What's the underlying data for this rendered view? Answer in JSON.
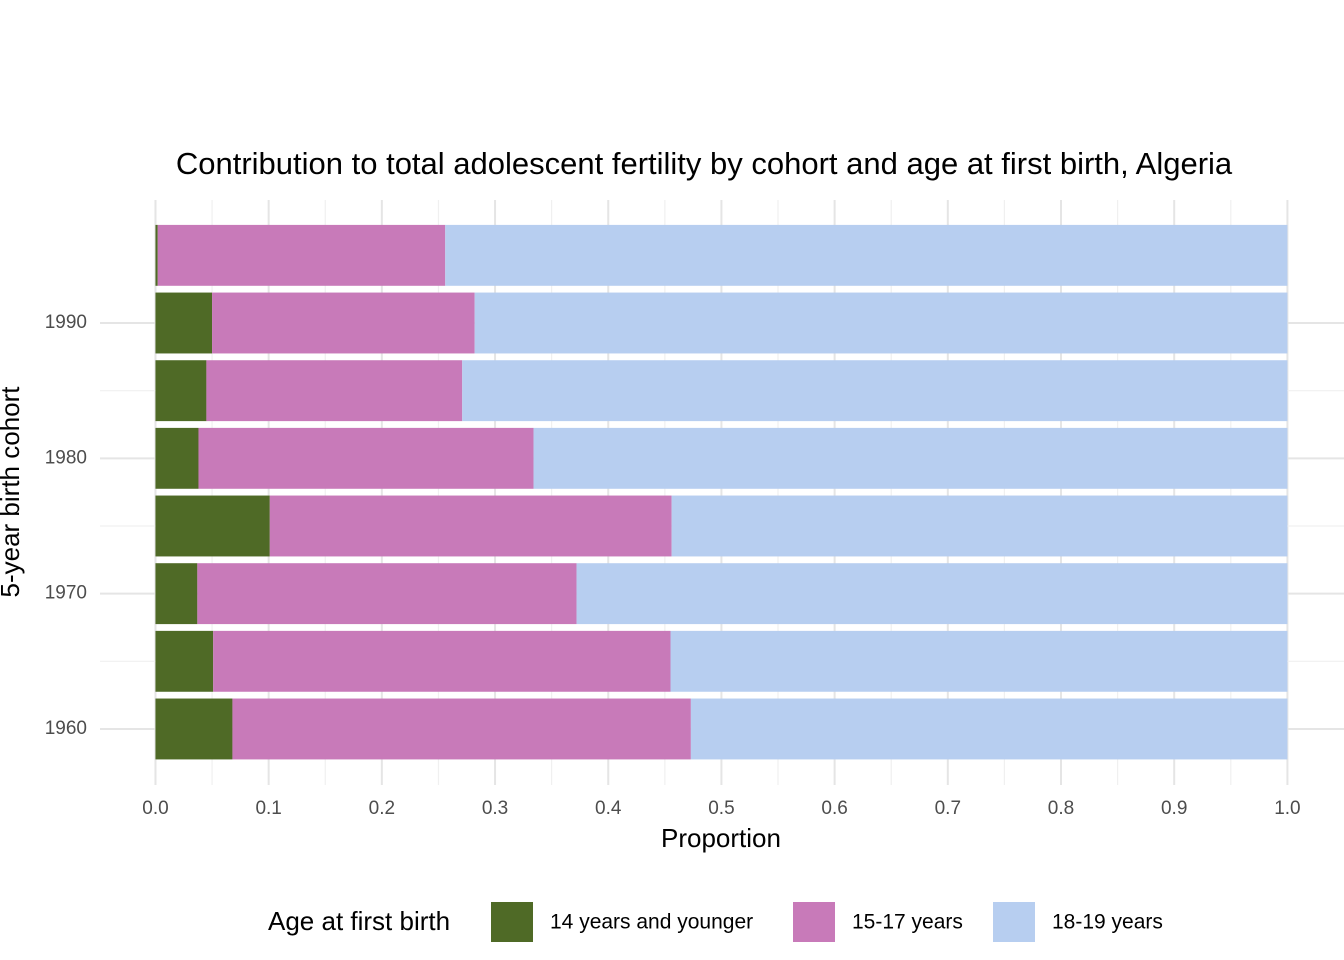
{
  "chart_data": {
    "type": "stacked-horizontal-bar",
    "title": "Contribution to total adolescent fertility by cohort and age at first birth,  Algeria",
    "x_label": "Proportion",
    "y_label": "5-year birth cohort",
    "legend_title": "Age at first birth",
    "y": [
      1960,
      1965,
      1970,
      1975,
      1980,
      1985,
      1990,
      1995
    ],
    "series": [
      {
        "name": "14 years and younger",
        "color": "#4f6a26",
        "values": [
          0.068,
          0.051,
          0.037,
          0.101,
          0.038,
          0.045,
          0.05,
          0.002
        ]
      },
      {
        "name": "15-17 years",
        "color": "#c87ab9",
        "values": [
          0.405,
          0.404,
          0.335,
          0.355,
          0.296,
          0.226,
          0.232,
          0.254
        ]
      },
      {
        "name": "18-19 years",
        "color": "#b7cef0",
        "values": [
          0.527,
          0.545,
          0.628,
          0.544,
          0.666,
          0.729,
          0.718,
          0.744
        ]
      }
    ],
    "xlim": [
      -0.049,
      1.05
    ],
    "xticks": [
      {
        "value": 0,
        "label": "0.0"
      },
      0.1,
      0.2,
      0.3,
      0.4,
      0.5,
      0.6,
      0.7,
      0.8,
      0.9,
      {
        "value": 1,
        "label": "1.0"
      }
    ],
    "ylim": [
      1955.86,
      1999.09
    ],
    "yticks": [
      1960,
      1970,
      1980,
      1990
    ],
    "grid": true
  }
}
